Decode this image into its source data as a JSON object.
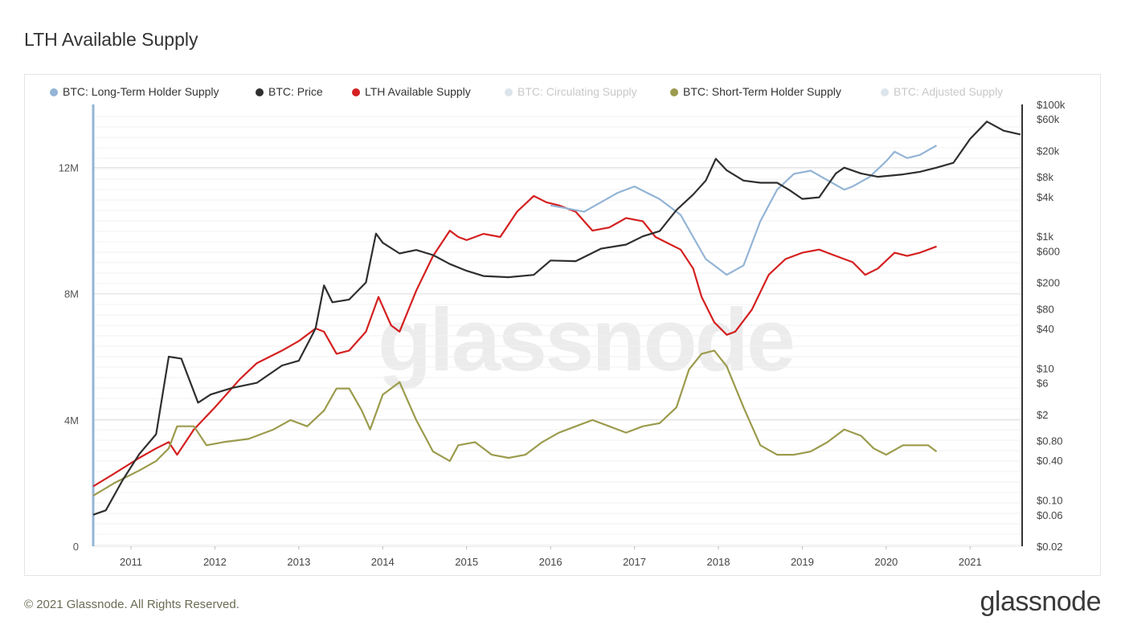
{
  "page": {
    "title": "LTH Available Supply",
    "footer_copyright": "© 2021 Glassnode. All Rights Reserved.",
    "footer_logo": "glassnode",
    "watermark": "glassnode"
  },
  "legend": [
    {
      "label": "BTC: Long-Term Holder Supply",
      "color": "#93b4d6",
      "active": true
    },
    {
      "label": "BTC: Price",
      "color": "#2f2f2f",
      "active": true
    },
    {
      "label": "LTH Available Supply",
      "color": "#d42020",
      "active": true
    },
    {
      "label": "BTC: Circulating Supply",
      "color": "#a3a86b",
      "active": false
    },
    {
      "label": "BTC: Short-Term Holder Supply",
      "color": "#9b9b4d",
      "active": true
    },
    {
      "label": "BTC: Adjusted Supply",
      "color": "#93b4d6",
      "active": false
    }
  ],
  "chart_data": {
    "type": "line",
    "title": "LTH Available Supply",
    "x_ticks": [
      "2011",
      "2012",
      "2013",
      "2014",
      "2015",
      "2016",
      "2017",
      "2018",
      "2019",
      "2020",
      "2021"
    ],
    "x_range": [
      "2010-07",
      "2021-08"
    ],
    "y_left": {
      "ticks": [
        "0",
        "4M",
        "8M",
        "12M"
      ],
      "range": [
        0,
        14000000
      ]
    },
    "y_right": {
      "scale": "log",
      "ticks": [
        "$100k",
        "$60k",
        "$20k",
        "$8k",
        "$4k",
        "$1k",
        "$600",
        "$200",
        "$80",
        "$40",
        "$10",
        "$6",
        "$2",
        "$0.80",
        "$0.40",
        "$0.10",
        "$0.06",
        "$0.02"
      ],
      "range": [
        0.02,
        100000
      ]
    },
    "grid": true,
    "legend_position": "top",
    "series": [
      {
        "name": "LTH Available Supply",
        "color": "#d42020",
        "axis": "left",
        "x": [
          2010.55,
          2010.8,
          2011.1,
          2011.3,
          2011.45,
          2011.55,
          2011.75,
          2012.0,
          2012.3,
          2012.5,
          2012.8,
          2013.0,
          2013.2,
          2013.3,
          2013.45,
          2013.6,
          2013.8,
          2013.95,
          2014.1,
          2014.2,
          2014.4,
          2014.6,
          2014.8,
          2014.9,
          2015.0,
          2015.2,
          2015.4,
          2015.6,
          2015.8,
          2015.95,
          2016.1,
          2016.3,
          2016.5,
          2016.7,
          2016.9,
          2017.1,
          2017.25,
          2017.4,
          2017.55,
          2017.7,
          2017.8,
          2017.95,
          2018.1,
          2018.2,
          2018.4,
          2018.6,
          2018.8,
          2019.0,
          2019.2,
          2019.4,
          2019.6,
          2019.75,
          2019.9,
          2020.1,
          2020.25,
          2020.4,
          2020.6
        ],
        "y": [
          1.9,
          2.3,
          2.8,
          3.1,
          3.3,
          2.9,
          3.7,
          4.4,
          5.3,
          5.8,
          6.2,
          6.5,
          6.9,
          6.8,
          6.1,
          6.2,
          6.8,
          7.9,
          7.0,
          6.8,
          8.1,
          9.2,
          10.0,
          9.8,
          9.7,
          9.9,
          9.8,
          10.6,
          11.1,
          10.9,
          10.8,
          10.6,
          10.0,
          10.1,
          10.4,
          10.3,
          9.8,
          9.6,
          9.4,
          8.8,
          7.9,
          7.1,
          6.7,
          6.8,
          7.5,
          8.6,
          9.1,
          9.3,
          9.4,
          9.2,
          9.0,
          8.6,
          8.8,
          9.3,
          9.2,
          9.3,
          9.5
        ]
      },
      {
        "name": "BTC: Short-Term Holder Supply",
        "color": "#9b9b4d",
        "axis": "left",
        "x": [
          2010.55,
          2010.8,
          2011.1,
          2011.3,
          2011.45,
          2011.55,
          2011.75,
          2011.9,
          2012.1,
          2012.4,
          2012.7,
          2012.9,
          2013.1,
          2013.3,
          2013.45,
          2013.6,
          2013.75,
          2013.85,
          2014.0,
          2014.2,
          2014.4,
          2014.6,
          2014.8,
          2014.9,
          2015.1,
          2015.3,
          2015.5,
          2015.7,
          2015.9,
          2016.1,
          2016.3,
          2016.5,
          2016.7,
          2016.9,
          2017.1,
          2017.3,
          2017.5,
          2017.65,
          2017.8,
          2017.95,
          2018.1,
          2018.3,
          2018.5,
          2018.7,
          2018.9,
          2019.1,
          2019.3,
          2019.5,
          2019.7,
          2019.85,
          2020.0,
          2020.2,
          2020.35,
          2020.5,
          2020.6
        ],
        "y": [
          1.6,
          2.0,
          2.4,
          2.7,
          3.1,
          3.8,
          3.8,
          3.2,
          3.3,
          3.4,
          3.7,
          4.0,
          3.8,
          4.3,
          5.0,
          5.0,
          4.3,
          3.7,
          4.8,
          5.2,
          4.0,
          3.0,
          2.7,
          3.2,
          3.3,
          2.9,
          2.8,
          2.9,
          3.3,
          3.6,
          3.8,
          4.0,
          3.8,
          3.6,
          3.8,
          3.9,
          4.4,
          5.6,
          6.1,
          6.2,
          5.7,
          4.4,
          3.2,
          2.9,
          2.9,
          3.0,
          3.3,
          3.7,
          3.5,
          3.1,
          2.9,
          3.2,
          3.2,
          3.2,
          3.0
        ]
      },
      {
        "name": "BTC: Long-Term Holder Supply",
        "color": "#93b4d6",
        "axis": "left",
        "x": [
          2016.0,
          2016.2,
          2016.4,
          2016.6,
          2016.8,
          2017.0,
          2017.15,
          2017.3,
          2017.45,
          2017.55,
          2017.7,
          2017.85,
          2018.0,
          2018.1,
          2018.3,
          2018.5,
          2018.7,
          2018.9,
          2019.1,
          2019.3,
          2019.5,
          2019.6,
          2019.8,
          2020.0,
          2020.1,
          2020.25,
          2020.4,
          2020.6
        ],
        "y": [
          10.8,
          10.7,
          10.6,
          10.9,
          11.2,
          11.4,
          11.2,
          11.0,
          10.7,
          10.5,
          9.8,
          9.1,
          8.8,
          8.6,
          8.9,
          10.3,
          11.3,
          11.8,
          11.9,
          11.6,
          11.3,
          11.4,
          11.7,
          12.2,
          12.5,
          12.3,
          12.4,
          12.7
        ]
      },
      {
        "name": "BTC: Price",
        "color": "#2f2f2f",
        "axis": "right",
        "x": [
          2010.55,
          2010.7,
          2010.9,
          2011.1,
          2011.3,
          2011.45,
          2011.6,
          2011.8,
          2011.95,
          2012.2,
          2012.5,
          2012.8,
          2013.0,
          2013.2,
          2013.3,
          2013.4,
          2013.6,
          2013.8,
          2013.92,
          2014.0,
          2014.2,
          2014.4,
          2014.6,
          2014.8,
          2015.0,
          2015.2,
          2015.5,
          2015.8,
          2016.0,
          2016.3,
          2016.6,
          2016.9,
          2017.1,
          2017.3,
          2017.5,
          2017.7,
          2017.85,
          2017.97,
          2018.1,
          2018.3,
          2018.5,
          2018.7,
          2018.85,
          2019.0,
          2019.2,
          2019.4,
          2019.5,
          2019.7,
          2019.9,
          2020.2,
          2020.4,
          2020.6,
          2020.8,
          2021.0,
          2021.2,
          2021.4,
          2021.6
        ],
        "y": [
          0.06,
          0.07,
          0.2,
          0.5,
          1.0,
          15,
          14,
          3,
          4,
          5,
          6,
          11,
          13,
          40,
          180,
          100,
          110,
          200,
          1100,
          800,
          550,
          620,
          520,
          380,
          300,
          250,
          240,
          260,
          430,
          420,
          650,
          750,
          1000,
          1200,
          2500,
          4300,
          7000,
          15000,
          10000,
          7000,
          6500,
          6500,
          5000,
          3700,
          3900,
          9000,
          11000,
          9000,
          8000,
          8700,
          9500,
          11000,
          13000,
          30000,
          55000,
          40000,
          35000
        ]
      }
    ]
  }
}
